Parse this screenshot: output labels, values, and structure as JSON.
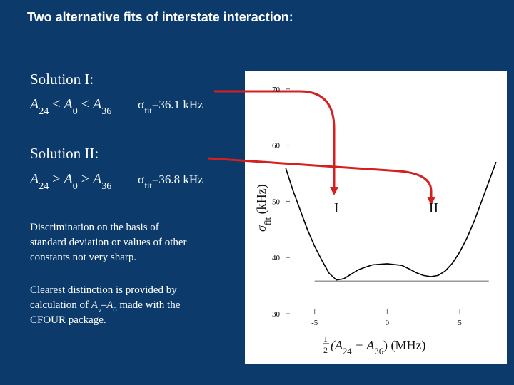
{
  "slide": {
    "title": "Two alternative fits of interstate interaction:",
    "solution1": {
      "heading": "Solution I:",
      "formula": [
        [
          "A",
          "i"
        ],
        [
          "24",
          "sub"
        ],
        [
          " < ",
          "n"
        ],
        [
          "A",
          "i"
        ],
        [
          "0",
          "sub"
        ],
        [
          " < ",
          "n"
        ],
        [
          "A",
          "i"
        ],
        [
          "36",
          "sub"
        ]
      ],
      "sigma": [
        [
          "σ",
          "n"
        ],
        [
          "fit",
          "sub"
        ],
        [
          "=36.1 k",
          "n"
        ],
        [
          "Hz",
          "n"
        ]
      ]
    },
    "solution2": {
      "heading": "Solution II:",
      "formula": [
        [
          "A",
          "i"
        ],
        [
          "24",
          "sub"
        ],
        [
          " > ",
          "n"
        ],
        [
          "A",
          "i"
        ],
        [
          "0",
          "sub"
        ],
        [
          " > ",
          "n"
        ],
        [
          "A",
          "i"
        ],
        [
          "36",
          "sub"
        ]
      ],
      "sigma": [
        [
          "σ",
          "n"
        ],
        [
          "fit",
          "sub"
        ],
        [
          "=36.8 k",
          "n"
        ],
        [
          "Hz",
          "n"
        ]
      ]
    },
    "discrimination": [
      [
        [
          "Discrimination on the basis of",
          "n"
        ]
      ],
      [
        [
          "standard deviation or values of other",
          "n"
        ]
      ],
      [
        [
          "constants not very sharp.",
          "n"
        ]
      ]
    ],
    "clearest": [
      [
        [
          "Clearest distinction is provided by",
          "n"
        ]
      ],
      [
        [
          "calculation of ",
          "n"
        ],
        [
          "A",
          "i"
        ],
        [
          "ν",
          "sub"
        ],
        [
          "–",
          "n"
        ],
        [
          "A",
          "i"
        ],
        [
          "0",
          "sub"
        ],
        [
          " made with the",
          "n"
        ]
      ],
      [
        [
          "CFOUR package.",
          "n"
        ]
      ]
    ]
  },
  "chart_data": {
    "type": "line",
    "y_label": [
      [
        "σ",
        "i"
      ],
      [
        "fit",
        "sub"
      ],
      [
        " (kHz)",
        "n"
      ]
    ],
    "x_label_fraction": [
      "1",
      "2"
    ],
    "x_label": [
      [
        "(A",
        "i"
      ],
      [
        "24",
        "sub"
      ],
      [
        " − A",
        "i"
      ],
      [
        "36",
        "sub"
      ],
      [
        ")  (MHz)",
        "n"
      ]
    ],
    "x": [
      -7,
      -6.5,
      -6,
      -5.5,
      -5,
      -4.5,
      -4,
      -3.5,
      -3,
      -2.5,
      -2,
      -1.5,
      -1,
      0,
      1,
      1.5,
      2,
      2.5,
      3,
      3.5,
      4,
      4.5,
      5,
      5.5,
      6,
      6.5,
      7,
      7.5
    ],
    "values": [
      56,
      52,
      48.5,
      45,
      42,
      39.5,
      37.2,
      36,
      36.2,
      37,
      37.8,
      38.3,
      38.7,
      38.9,
      38.6,
      38,
      37.3,
      36.8,
      36.6,
      36.8,
      37.6,
      39,
      41,
      43.5,
      46.5,
      50,
      53.5,
      57
    ],
    "color": "#000000",
    "reference_line": {
      "value": 35.8,
      "x": [
        -5,
        7
      ],
      "color": "#999999"
    },
    "annotations": [
      {
        "text": "I",
        "x": -3.5,
        "y": 48
      },
      {
        "text": "II",
        "x": 3.2,
        "y": 48
      }
    ],
    "xlim": [
      -7,
      7.75
    ],
    "ylim": [
      30,
      72
    ],
    "xticks": [
      -5,
      0,
      5
    ],
    "yticks": [
      30,
      40,
      50,
      60,
      70
    ]
  }
}
